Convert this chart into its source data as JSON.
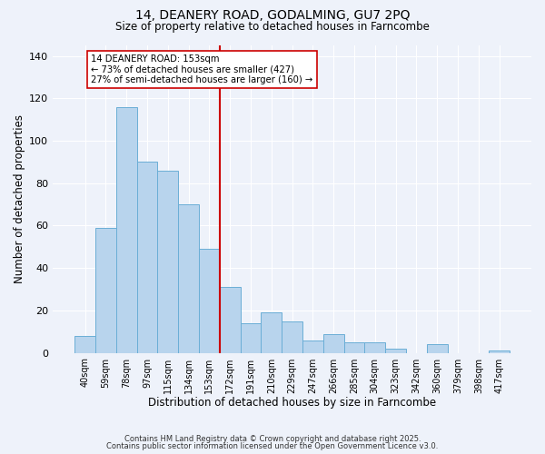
{
  "title_line1": "14, DEANERY ROAD, GODALMING, GU7 2PQ",
  "title_line2": "Size of property relative to detached houses in Farncombe",
  "xlabel": "Distribution of detached houses by size in Farncombe",
  "ylabel": "Number of detached properties",
  "bar_labels": [
    "40sqm",
    "59sqm",
    "78sqm",
    "97sqm",
    "115sqm",
    "134sqm",
    "153sqm",
    "172sqm",
    "191sqm",
    "210sqm",
    "229sqm",
    "247sqm",
    "266sqm",
    "285sqm",
    "304sqm",
    "323sqm",
    "342sqm",
    "360sqm",
    "379sqm",
    "398sqm",
    "417sqm"
  ],
  "bar_values": [
    8,
    59,
    116,
    90,
    86,
    70,
    49,
    31,
    14,
    19,
    15,
    6,
    9,
    5,
    5,
    2,
    0,
    4,
    0,
    0,
    1
  ],
  "bar_color": "#b8d4ed",
  "bar_edge_color": "#6aaed6",
  "vline_x": 6.5,
  "vline_color": "#cc0000",
  "annotation_title": "14 DEANERY ROAD: 153sqm",
  "annotation_line2": "← 73% of detached houses are smaller (427)",
  "annotation_line3": "27% of semi-detached houses are larger (160) →",
  "annotation_box_color": "#ffffff",
  "annotation_edge_color": "#cc0000",
  "ylim": [
    0,
    145
  ],
  "yticks": [
    0,
    20,
    40,
    60,
    80,
    100,
    120,
    140
  ],
  "footer_line1": "Contains HM Land Registry data © Crown copyright and database right 2025.",
  "footer_line2": "Contains public sector information licensed under the Open Government Licence v3.0.",
  "background_color": "#eef2fa",
  "grid_color": "#ffffff"
}
